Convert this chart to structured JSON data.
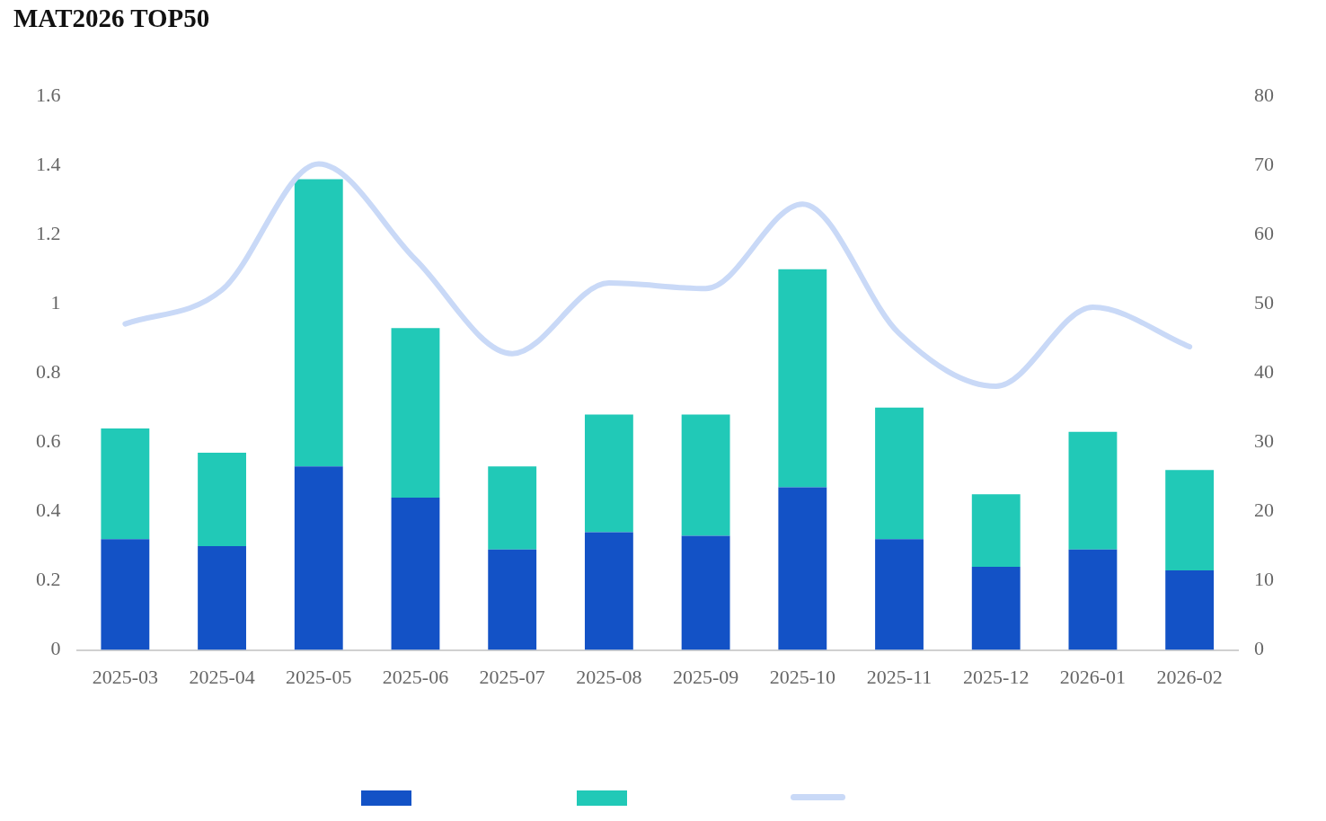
{
  "chart_data": {
    "type": "bar",
    "title": "MAT2026 TOP50",
    "stacked": true,
    "categories": [
      "2025-03",
      "2025-04",
      "2025-05",
      "2025-06",
      "2025-07",
      "2025-08",
      "2025-09",
      "2025-10",
      "2025-11",
      "2025-12",
      "2026-01",
      "2026-02"
    ],
    "series": [
      {
        "color": "#1352c6",
        "values": [
          0.32,
          0.3,
          0.53,
          0.44,
          0.29,
          0.34,
          0.33,
          0.47,
          0.32,
          0.24,
          0.29,
          0.23
        ]
      },
      {
        "color": "#21c9b7",
        "values": [
          0.32,
          0.27,
          0.83,
          0.49,
          0.24,
          0.34,
          0.35,
          0.63,
          0.38,
          0.21,
          0.34,
          0.29
        ]
      },
      {
        "type": "line",
        "axis": "y2",
        "color": "#c9d9f7",
        "values": [
          47.1,
          52,
          70.2,
          56.4,
          42.8,
          53,
          52.2,
          64.4,
          45.7,
          38.1,
          49.5,
          43.8
        ]
      }
    ],
    "ylim": [
      0,
      1.6
    ],
    "yticks": [
      0,
      0.2,
      0.4,
      0.6,
      0.8,
      1,
      1.2,
      1.4,
      1.6
    ],
    "y2lim": [
      0,
      80
    ],
    "y2ticks": [
      0,
      10,
      20,
      30,
      40,
      50,
      60,
      70,
      80
    ],
    "grid": false,
    "marker": "none"
  }
}
